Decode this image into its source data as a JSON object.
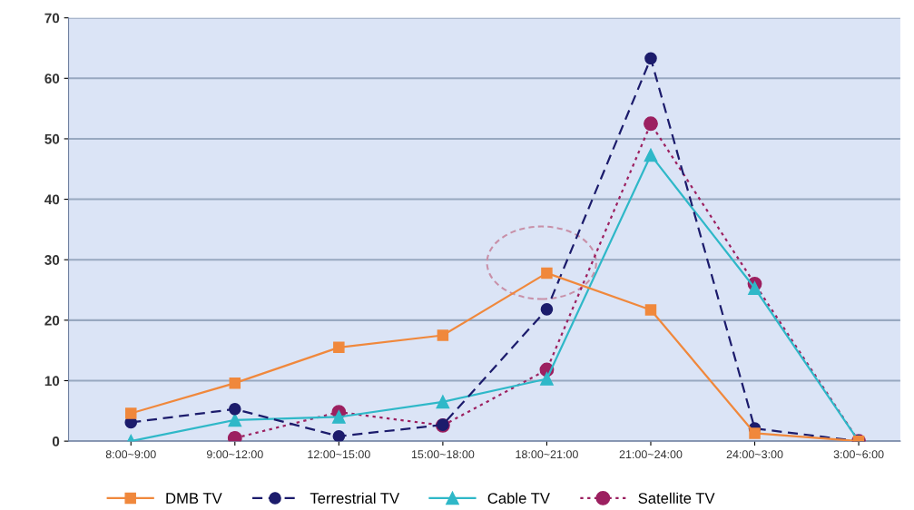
{
  "chart_data": {
    "type": "line",
    "categories": [
      "8:00~9:00",
      "9:00~12:00",
      "12:00~15:00",
      "15:00~18:00",
      "18:00~21:00",
      "21:00~24:00",
      "24:00~3:00",
      "3:00~6:00"
    ],
    "series": [
      {
        "name": "DMB TV",
        "color": "#f0883c",
        "marker": "square",
        "line_style": "solid",
        "values": [
          4.6,
          9.6,
          15.5,
          17.5,
          27.8,
          21.7,
          1.3,
          0
        ]
      },
      {
        "name": "Terrestrial TV",
        "color": "#1c1c6c",
        "marker": "circle",
        "line_style": "dashed",
        "values": [
          3.1,
          5.3,
          0.8,
          2.7,
          21.8,
          63.3,
          2.1,
          0
        ]
      },
      {
        "name": "Cable TV",
        "color": "#2fb8c8",
        "marker": "triangle",
        "line_style": "solid",
        "values": [
          0,
          3.5,
          4,
          6.5,
          10.3,
          47.3,
          25.3,
          0
        ]
      },
      {
        "name": "Satellite TV",
        "color": "#9c2060",
        "marker": "circle",
        "line_style": "dotted",
        "values": [
          null,
          0.5,
          4.8,
          2.6,
          11.8,
          52.5,
          26,
          0
        ]
      }
    ],
    "ylim": [
      0,
      70
    ],
    "yticks": [
      0,
      10,
      20,
      30,
      40,
      50,
      60,
      70
    ],
    "grid": "y",
    "legend": "bottom"
  }
}
